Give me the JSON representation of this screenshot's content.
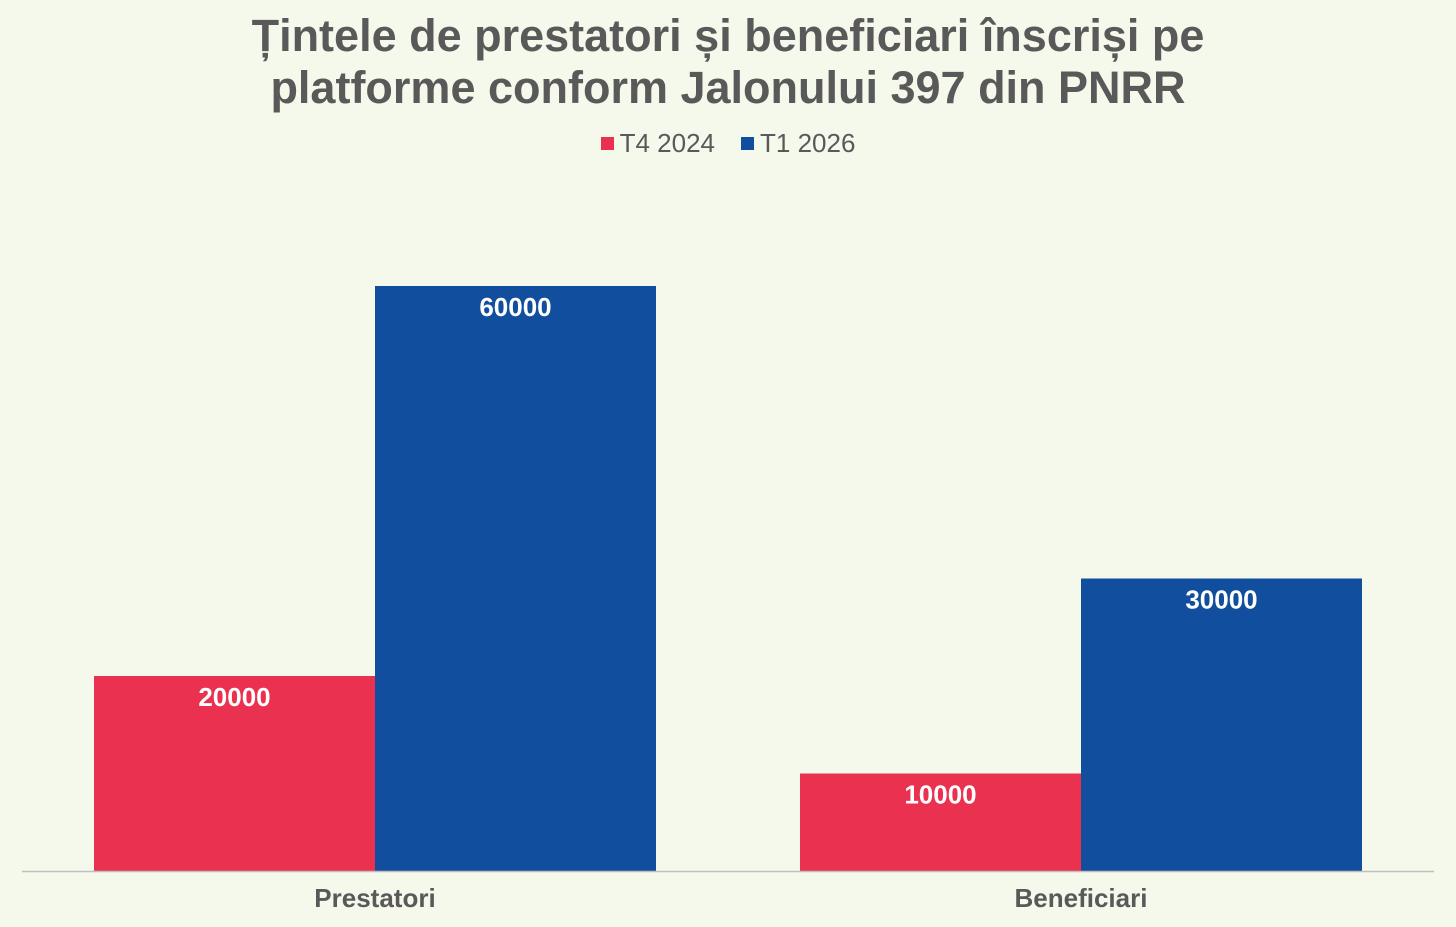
{
  "chart_data": {
    "type": "bar",
    "title": "Țintele de prestatori și beneficiari înscriși pe platforme conform Jalonului 397 din PNRR",
    "categories": [
      "Prestatori",
      "Beneficiari"
    ],
    "series": [
      {
        "name": "T4 2024",
        "color": "#ea314f",
        "values": [
          20000,
          10000
        ]
      },
      {
        "name": "T1 2026",
        "color": "#114f9e",
        "values": [
          60000,
          30000
        ]
      }
    ],
    "data_labels": true,
    "ylim": [
      0,
      70000
    ],
    "grid": false,
    "legend_position": "top",
    "xlabel": "",
    "ylabel": ""
  },
  "title_lines": [
    "Țintele de prestatori și beneficiari înscriși pe",
    "platforme conform Jalonului 397 din PNRR"
  ],
  "colors": {
    "background": "#f5f9ec",
    "text": "#595959",
    "axis": "#bfbfbf",
    "label": "#ffffff"
  }
}
